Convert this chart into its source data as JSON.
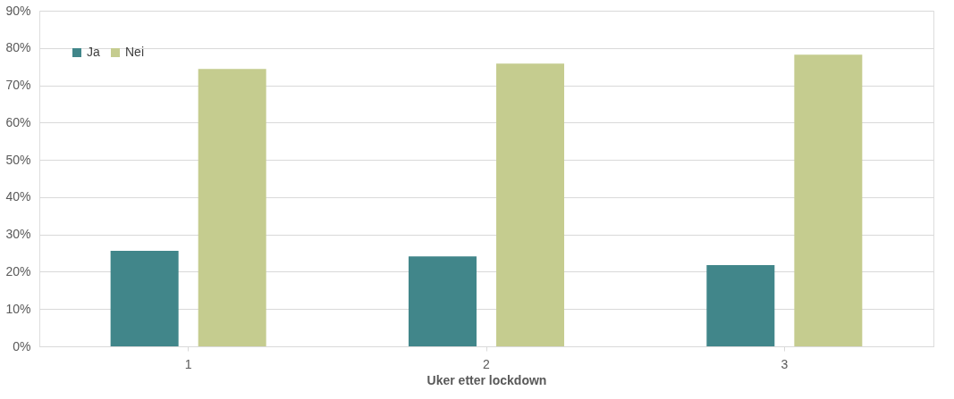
{
  "chart_data": {
    "type": "bar",
    "xlabel": "Uker etter lockdown",
    "categories": [
      "1",
      "2",
      "3"
    ],
    "series": [
      {
        "name": "Ja",
        "color": "#41868a",
        "values": [
          25.6,
          24.1,
          21.8
        ]
      },
      {
        "name": "Nei",
        "color": "#c5cc8f",
        "values": [
          74.4,
          75.8,
          78.2
        ]
      }
    ],
    "ylim": [
      0,
      90
    ],
    "yticks": [
      {
        "value": 0,
        "label": "0%"
      },
      {
        "value": 10,
        "label": "10%"
      },
      {
        "value": 20,
        "label": "20%"
      },
      {
        "value": 30,
        "label": "30%"
      },
      {
        "value": 40,
        "label": "40%"
      },
      {
        "value": 50,
        "label": "50%"
      },
      {
        "value": 60,
        "label": "60%"
      },
      {
        "value": 70,
        "label": "70%"
      },
      {
        "value": 80,
        "label": "80%"
      },
      {
        "value": 90,
        "label": "90%"
      }
    ],
    "grid": "y",
    "legend": "top left"
  }
}
